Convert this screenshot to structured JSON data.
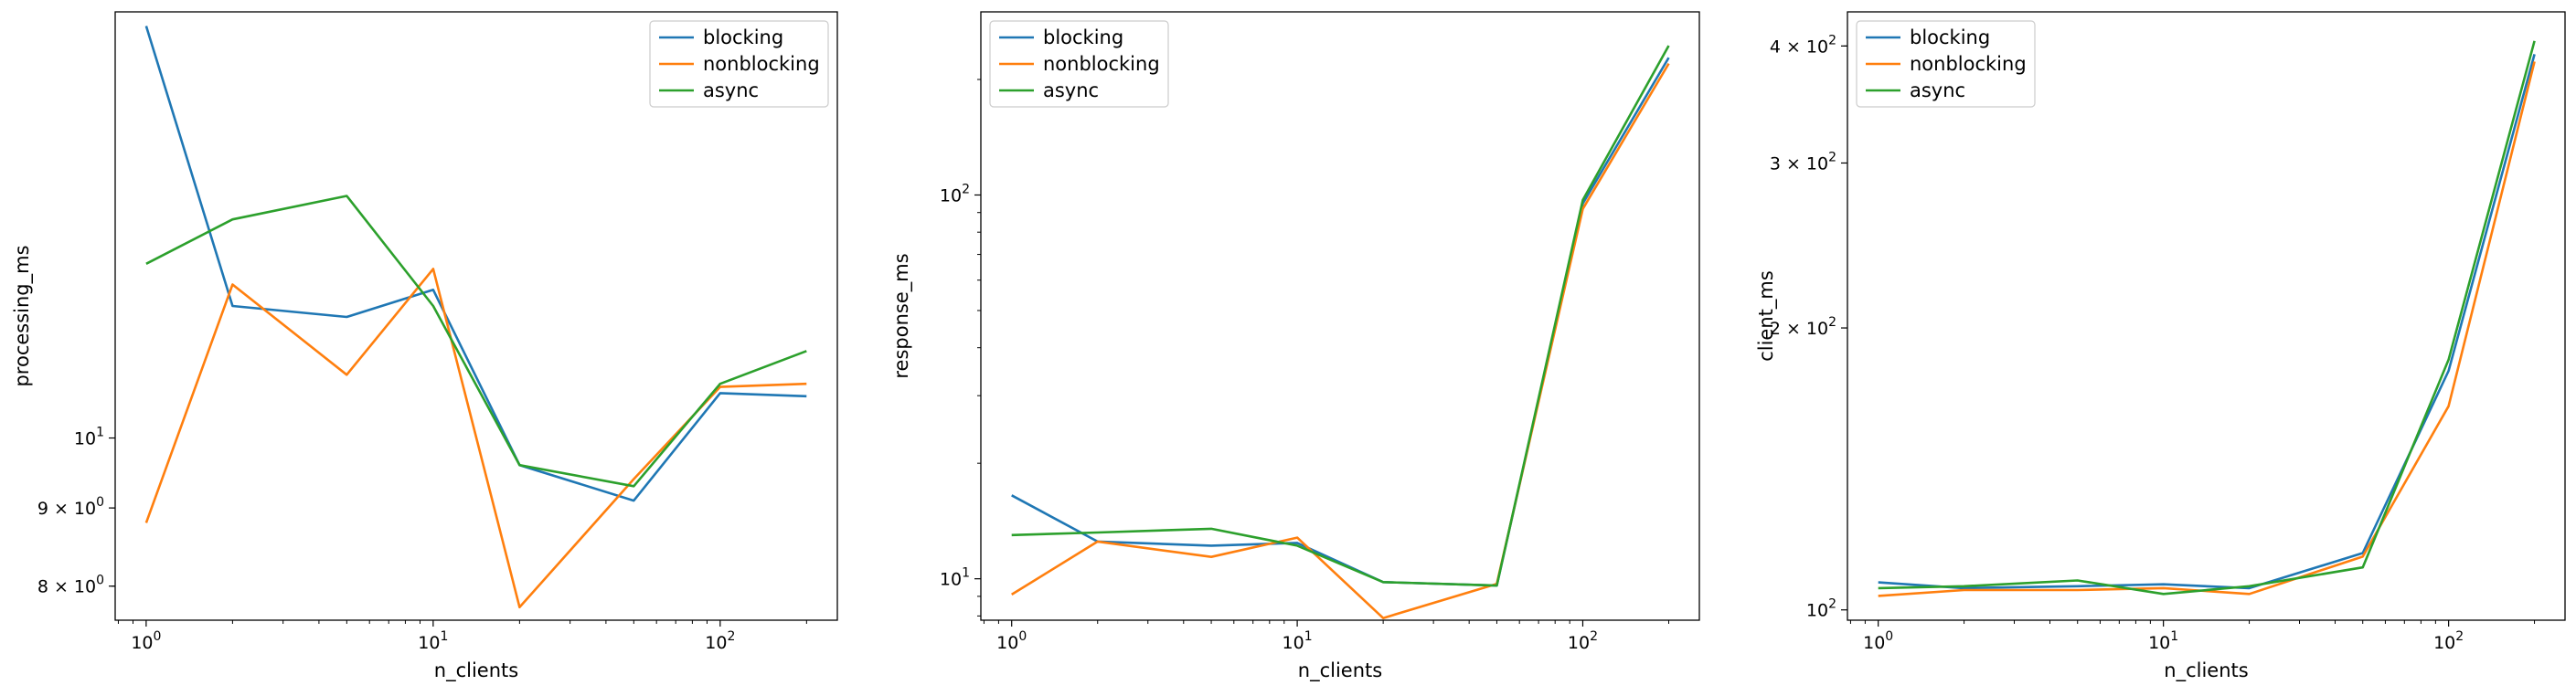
{
  "chart_data": [
    {
      "type": "line",
      "xlabel": "n_clients",
      "ylabel": "processing_ms",
      "xscale": "log",
      "yscale": "log",
      "xlim": [
        0.78,
        256
      ],
      "ylim": [
        7.6,
        19.0
      ],
      "xticks": [
        {
          "v": 1,
          "b": "10",
          "e": "0"
        },
        {
          "v": 10,
          "b": "10",
          "e": "1"
        },
        {
          "v": 100,
          "b": "10",
          "e": "2"
        }
      ],
      "yticks": [
        {
          "v": 8,
          "m": "8 × 10",
          "e": "0"
        },
        {
          "v": 9,
          "m": "9 × 10",
          "e": "0"
        },
        {
          "v": 10,
          "m": "10",
          "e": "1"
        }
      ],
      "x": [
        1,
        2,
        5,
        10,
        20,
        50,
        100,
        200
      ],
      "series": [
        {
          "name": "blocking",
          "color": "#1f77b4",
          "values": [
            18.6,
            12.2,
            12.0,
            12.5,
            9.6,
            9.1,
            10.7,
            10.65
          ]
        },
        {
          "name": "nonblocking",
          "color": "#ff7f0e",
          "values": [
            8.8,
            12.6,
            11.0,
            12.9,
            7.75,
            9.4,
            10.8,
            10.85
          ]
        },
        {
          "name": "async",
          "color": "#2ca02c",
          "values": [
            13.0,
            13.9,
            14.4,
            12.2,
            9.6,
            9.3,
            10.85,
            11.4
          ]
        }
      ],
      "legend": "top-right"
    },
    {
      "type": "line",
      "xlabel": "n_clients",
      "ylabel": "response_ms",
      "xscale": "log",
      "yscale": "log",
      "xlim": [
        0.78,
        256
      ],
      "ylim": [
        7.8,
        300
      ],
      "xticks": [
        {
          "v": 1,
          "b": "10",
          "e": "0"
        },
        {
          "v": 10,
          "b": "10",
          "e": "1"
        },
        {
          "v": 100,
          "b": "10",
          "e": "2"
        }
      ],
      "yticks": [
        {
          "v": 10,
          "m": "10",
          "e": "1"
        },
        {
          "v": 100,
          "m": "10",
          "e": "2"
        }
      ],
      "x": [
        1,
        2,
        5,
        10,
        20,
        50,
        100,
        200
      ],
      "series": [
        {
          "name": "blocking",
          "color": "#1f77b4",
          "values": [
            16.5,
            12.5,
            12.2,
            12.4,
            9.8,
            9.6,
            95,
            228
          ]
        },
        {
          "name": "nonblocking",
          "color": "#ff7f0e",
          "values": [
            9.1,
            12.5,
            11.4,
            12.8,
            7.9,
            9.7,
            92,
            220
          ]
        },
        {
          "name": "async",
          "color": "#2ca02c",
          "values": [
            13.0,
            13.2,
            13.5,
            12.2,
            9.8,
            9.6,
            97,
            245
          ]
        }
      ],
      "legend": "top-left"
    },
    {
      "type": "line",
      "xlabel": "n_clients",
      "ylabel": "client_ms",
      "xscale": "log",
      "yscale": "log",
      "xlim": [
        0.78,
        256
      ],
      "ylim": [
        97.5,
        435
      ],
      "xticks": [
        {
          "v": 1,
          "b": "10",
          "e": "0"
        },
        {
          "v": 10,
          "b": "10",
          "e": "1"
        },
        {
          "v": 100,
          "b": "10",
          "e": "2"
        }
      ],
      "yticks": [
        {
          "v": 100,
          "m": "10",
          "e": "2"
        },
        {
          "v": 200,
          "m": "2 × 10",
          "e": "2"
        },
        {
          "v": 300,
          "m": "3 × 10",
          "e": "2"
        },
        {
          "v": 400,
          "m": "4 × 10",
          "e": "2"
        }
      ],
      "x": [
        1,
        2,
        5,
        10,
        20,
        50,
        100,
        200
      ],
      "series": [
        {
          "name": "blocking",
          "color": "#1f77b4",
          "values": [
            107.0,
            105.5,
            106.0,
            106.5,
            105.5,
            115.0,
            180,
            392
          ]
        },
        {
          "name": "nonblocking",
          "color": "#ff7f0e",
          "values": [
            103.5,
            105.0,
            105.0,
            105.5,
            104.0,
            114.0,
            165,
            385
          ]
        },
        {
          "name": "async",
          "color": "#2ca02c",
          "values": [
            105.5,
            106.0,
            107.5,
            104.0,
            106.0,
            111.0,
            185,
            405
          ]
        }
      ],
      "legend": "top-left"
    }
  ]
}
